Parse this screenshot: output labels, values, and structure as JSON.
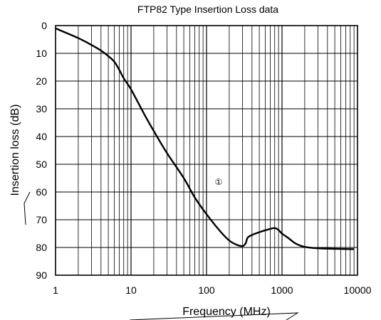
{
  "chart_data": {
    "type": "line",
    "title": "FTP82 Type Insertion Loss data",
    "xlabel": "Frequency (MHz)",
    "ylabel": "Insertion loss (dB)",
    "x_scale": "log",
    "xlim": [
      1,
      10000
    ],
    "ylim": [
      0,
      90
    ],
    "y_inverted": true,
    "x_ticks": [
      1,
      10,
      100,
      1000,
      10000
    ],
    "x_tick_labels": [
      "1",
      "10",
      "100",
      "1000",
      "10000"
    ],
    "y_ticks": [
      0,
      10,
      20,
      30,
      40,
      50,
      60,
      70,
      80,
      90
    ],
    "y_tick_labels": [
      "0",
      "10",
      "20",
      "30",
      "40",
      "50",
      "60",
      "70",
      "80",
      "90"
    ],
    "grid": true,
    "annotation": "①",
    "series": [
      {
        "x": [
          1,
          2,
          3,
          4,
          5,
          6,
          7,
          8,
          10,
          15,
          20,
          30,
          50,
          70,
          100,
          150,
          200,
          250,
          300,
          330,
          350,
          400,
          500,
          600,
          700,
          800,
          900,
          1000,
          1200,
          1500,
          2000,
          3000,
          5000,
          8000,
          9000
        ],
        "y": [
          1,
          4.5,
          7,
          9,
          11,
          13,
          16,
          19,
          23,
          32,
          38,
          46,
          55,
          62,
          68,
          74,
          77.5,
          79,
          79.5,
          78.5,
          76.5,
          75.5,
          74.5,
          73.8,
          73.3,
          73,
          73.7,
          75,
          76.5,
          78.5,
          79.8,
          80.3,
          80.5,
          80.6,
          80.6
        ]
      }
    ]
  }
}
